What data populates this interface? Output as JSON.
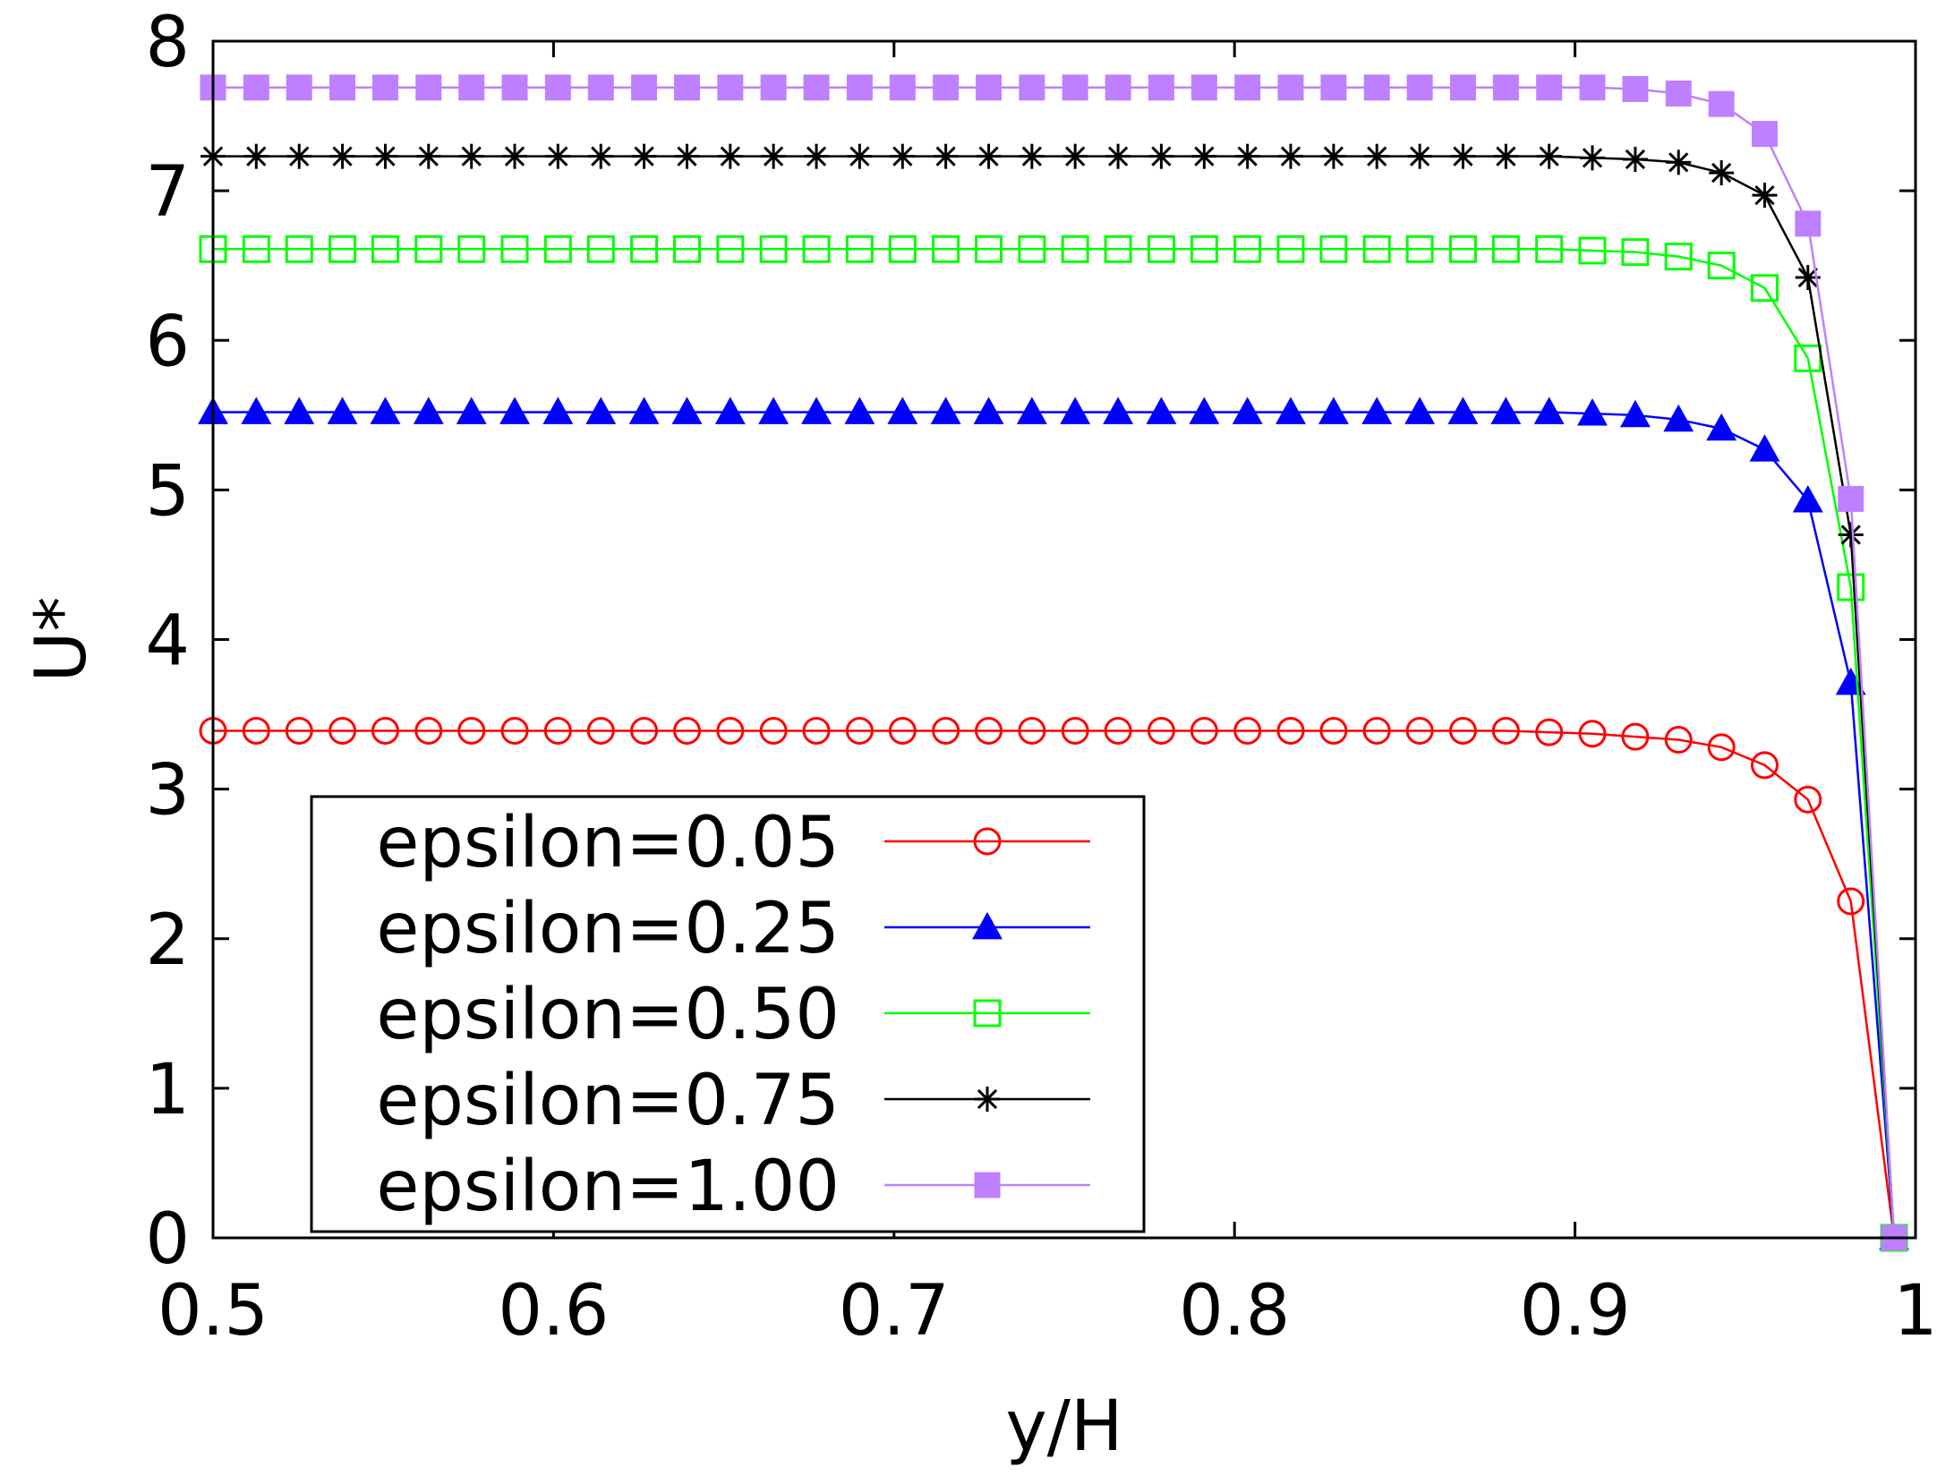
{
  "chart_data": {
    "type": "line",
    "title": "",
    "xlabel": "y/H",
    "ylabel": "U*",
    "xlim": [
      0.5,
      1.0
    ],
    "ylim": [
      0,
      8
    ],
    "xticks": [
      0.5,
      0.6,
      0.7,
      0.8,
      0.9,
      1.0
    ],
    "xtick_labels": [
      "0.5",
      "0.6",
      "0.7",
      "0.8",
      "0.9",
      "1"
    ],
    "yticks": [
      0,
      1,
      2,
      3,
      4,
      5,
      6,
      7,
      8
    ],
    "ytick_labels": [
      "0",
      "1",
      "2",
      "3",
      "4",
      "5",
      "6",
      "7",
      "8"
    ],
    "grid": false,
    "legend_position": "bottom-left",
    "x": [
      0.5,
      0.5127,
      0.5253,
      0.538,
      0.5506,
      0.5633,
      0.5759,
      0.5886,
      0.6013,
      0.6139,
      0.6266,
      0.6392,
      0.6519,
      0.6646,
      0.6772,
      0.6899,
      0.7025,
      0.7152,
      0.7278,
      0.7405,
      0.7532,
      0.7658,
      0.7785,
      0.7911,
      0.8038,
      0.8165,
      0.8291,
      0.8418,
      0.8544,
      0.8671,
      0.8797,
      0.8924,
      0.9051,
      0.9177,
      0.9304,
      0.943,
      0.9557,
      0.9684,
      0.981,
      0.9937
    ],
    "series": [
      {
        "name": "epsilon=0.05",
        "color": "#ff0000",
        "marker": "open-circle",
        "values": [
          3.39,
          3.39,
          3.39,
          3.39,
          3.39,
          3.39,
          3.39,
          3.39,
          3.39,
          3.39,
          3.39,
          3.39,
          3.39,
          3.39,
          3.39,
          3.39,
          3.39,
          3.39,
          3.39,
          3.39,
          3.39,
          3.39,
          3.39,
          3.39,
          3.39,
          3.39,
          3.39,
          3.39,
          3.39,
          3.39,
          3.39,
          3.38,
          3.37,
          3.35,
          3.33,
          3.28,
          3.16,
          2.93,
          2.25,
          0.0
        ]
      },
      {
        "name": "epsilon=0.25",
        "color": "#0000ff",
        "marker": "filled-triangle",
        "values": [
          5.52,
          5.52,
          5.52,
          5.52,
          5.52,
          5.52,
          5.52,
          5.52,
          5.52,
          5.52,
          5.52,
          5.52,
          5.52,
          5.52,
          5.52,
          5.52,
          5.52,
          5.52,
          5.52,
          5.52,
          5.52,
          5.52,
          5.52,
          5.52,
          5.52,
          5.52,
          5.52,
          5.52,
          5.52,
          5.52,
          5.52,
          5.52,
          5.51,
          5.5,
          5.47,
          5.41,
          5.27,
          4.93,
          3.71,
          0.0
        ]
      },
      {
        "name": "epsilon=0.50",
        "color": "#00ff00",
        "marker": "open-square",
        "values": [
          6.61,
          6.61,
          6.61,
          6.61,
          6.61,
          6.61,
          6.61,
          6.61,
          6.61,
          6.61,
          6.61,
          6.61,
          6.61,
          6.61,
          6.61,
          6.61,
          6.61,
          6.61,
          6.61,
          6.61,
          6.61,
          6.61,
          6.61,
          6.61,
          6.61,
          6.61,
          6.61,
          6.61,
          6.61,
          6.61,
          6.61,
          6.61,
          6.6,
          6.59,
          6.56,
          6.5,
          6.35,
          5.88,
          4.35,
          0.0
        ]
      },
      {
        "name": "epsilon=0.75",
        "color": "#000000",
        "marker": "asterisk",
        "values": [
          7.23,
          7.23,
          7.23,
          7.23,
          7.23,
          7.23,
          7.23,
          7.23,
          7.23,
          7.23,
          7.23,
          7.23,
          7.23,
          7.23,
          7.23,
          7.23,
          7.23,
          7.23,
          7.23,
          7.23,
          7.23,
          7.23,
          7.23,
          7.23,
          7.23,
          7.23,
          7.23,
          7.23,
          7.23,
          7.23,
          7.23,
          7.23,
          7.22,
          7.21,
          7.19,
          7.12,
          6.97,
          6.42,
          4.7,
          0.0
        ]
      },
      {
        "name": "epsilon=1.00",
        "color": "#bf80ff",
        "marker": "filled-square",
        "values": [
          7.69,
          7.69,
          7.69,
          7.69,
          7.69,
          7.69,
          7.69,
          7.69,
          7.69,
          7.69,
          7.69,
          7.69,
          7.69,
          7.69,
          7.69,
          7.69,
          7.69,
          7.69,
          7.69,
          7.69,
          7.69,
          7.69,
          7.69,
          7.69,
          7.69,
          7.69,
          7.69,
          7.69,
          7.69,
          7.69,
          7.69,
          7.69,
          7.69,
          7.68,
          7.65,
          7.58,
          7.38,
          6.78,
          4.94,
          0.0
        ]
      }
    ]
  }
}
